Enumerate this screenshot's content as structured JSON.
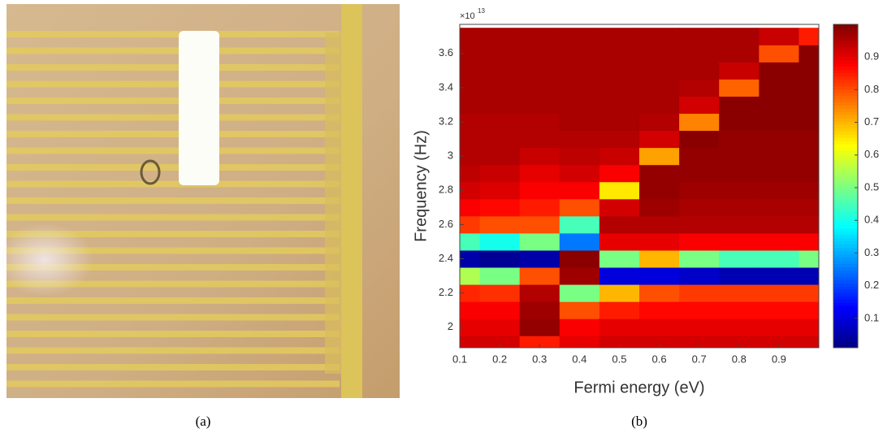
{
  "captions": [
    "(a)",
    "(b)"
  ],
  "chart_data": {
    "type": "heatmap",
    "xlabel": "Fermi energy (eV)",
    "ylabel": "Frequency (Hz)",
    "y_multiplier": "×10",
    "y_multiplier_exponent": "13",
    "x": [
      0.1,
      0.2,
      0.3,
      0.4,
      0.5,
      0.6,
      0.7,
      0.8,
      0.9,
      1.0
    ],
    "y": [
      1.9,
      2.0,
      2.1,
      2.2,
      2.3,
      2.4,
      2.5,
      2.6,
      2.7,
      2.8,
      2.9,
      3.0,
      3.1,
      3.2,
      3.3,
      3.4,
      3.5,
      3.6,
      3.7
    ],
    "z": [
      [
        0.92,
        0.9,
        0.88,
        0.84,
        0.55,
        0.05,
        0.45,
        0.82,
        0.88,
        0.92,
        0.94,
        0.95,
        0.95,
        0.95,
        0.96,
        0.96,
        0.96,
        0.96,
        0.96
      ],
      [
        0.92,
        0.9,
        0.88,
        0.83,
        0.5,
        0.03,
        0.4,
        0.8,
        0.87,
        0.91,
        0.93,
        0.95,
        0.95,
        0.95,
        0.96,
        0.96,
        0.96,
        0.96,
        0.96
      ],
      [
        0.85,
        0.98,
        0.97,
        0.95,
        0.8,
        0.05,
        0.5,
        0.8,
        0.85,
        0.88,
        0.9,
        0.93,
        0.95,
        0.95,
        0.96,
        0.96,
        0.96,
        0.96,
        0.96
      ],
      [
        0.9,
        0.88,
        0.8,
        0.5,
        0.97,
        0.99,
        0.25,
        0.45,
        0.8,
        0.88,
        0.92,
        0.94,
        0.95,
        0.96,
        0.96,
        0.96,
        0.96,
        0.96,
        0.96
      ],
      [
        0.92,
        0.9,
        0.85,
        0.7,
        0.1,
        0.5,
        0.9,
        0.95,
        0.92,
        0.65,
        0.88,
        0.93,
        0.95,
        0.96,
        0.96,
        0.96,
        0.96,
        0.96,
        0.96
      ],
      [
        0.92,
        0.9,
        0.87,
        0.8,
        0.1,
        0.7,
        0.9,
        0.95,
        0.97,
        0.98,
        0.98,
        0.72,
        0.92,
        0.95,
        0.96,
        0.96,
        0.96,
        0.96,
        0.96
      ],
      [
        0.92,
        0.9,
        0.87,
        0.82,
        0.08,
        0.5,
        0.88,
        0.95,
        0.96,
        0.97,
        0.98,
        0.98,
        0.99,
        0.75,
        0.92,
        0.95,
        0.96,
        0.96,
        0.96
      ],
      [
        0.92,
        0.9,
        0.87,
        0.82,
        0.06,
        0.45,
        0.88,
        0.95,
        0.96,
        0.97,
        0.98,
        0.98,
        0.98,
        0.99,
        0.99,
        0.78,
        0.93,
        0.96,
        0.96
      ],
      [
        0.92,
        0.9,
        0.87,
        0.82,
        0.06,
        0.45,
        0.88,
        0.95,
        0.96,
        0.97,
        0.98,
        0.98,
        0.98,
        0.99,
        0.99,
        0.99,
        0.99,
        0.8,
        0.93
      ],
      [
        0.92,
        0.9,
        0.87,
        0.82,
        0.06,
        0.5,
        0.88,
        0.95,
        0.96,
        0.97,
        0.98,
        0.98,
        0.98,
        0.99,
        0.99,
        0.99,
        0.99,
        0.99,
        0.85
      ]
    ],
    "xlim": [
      0.1,
      1.0
    ],
    "ylim": [
      1.88,
      3.77
    ],
    "xticks": [
      0.1,
      0.2,
      0.3,
      0.4,
      0.5,
      0.6,
      0.7,
      0.8,
      0.9
    ],
    "yticks": [
      2,
      2.2,
      2.4,
      2.6,
      2.8,
      3,
      3.2,
      3.4,
      3.6
    ],
    "colormap": "jet",
    "clim": [
      0.01,
      1.0
    ],
    "cticks": [
      0.1,
      0.2,
      0.3,
      0.4,
      0.5,
      0.6,
      0.7,
      0.8,
      0.9
    ]
  }
}
